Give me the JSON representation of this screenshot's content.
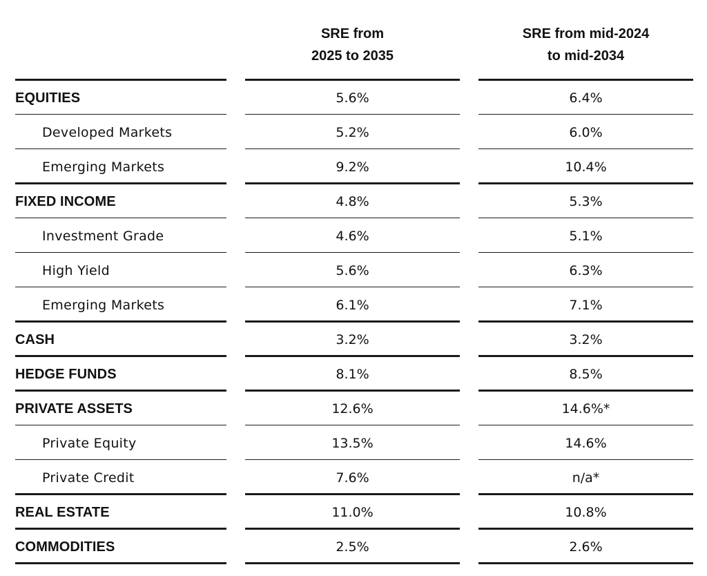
{
  "header": {
    "col1": {
      "line1": "SRE from",
      "line2": "2025 to 2035"
    },
    "col2": {
      "line1": "SRE from mid-2024",
      "line2": "to mid-2034"
    }
  },
  "rows": [
    {
      "label": "EQUITIES",
      "level": "main",
      "v1": "5.6%",
      "v2": "6.4%"
    },
    {
      "label": "Developed Markets",
      "level": "sub",
      "v1": "5.2%",
      "v2": "6.0%"
    },
    {
      "label": "Emerging Markets",
      "level": "sub",
      "v1": "9.2%",
      "v2": "10.4%"
    },
    {
      "label": "FIXED INCOME",
      "level": "main",
      "v1": "4.8%",
      "v2": "5.3%"
    },
    {
      "label": "Investment Grade",
      "level": "sub",
      "v1": "4.6%",
      "v2": "5.1%"
    },
    {
      "label": "High Yield",
      "level": "sub",
      "v1": "5.6%",
      "v2": "6.3%"
    },
    {
      "label": "Emerging Markets",
      "level": "sub",
      "v1": "6.1%",
      "v2": "7.1%"
    },
    {
      "label": "CASH",
      "level": "main",
      "v1": "3.2%",
      "v2": "3.2%"
    },
    {
      "label": "HEDGE FUNDS",
      "level": "main",
      "v1": "8.1%",
      "v2": "8.5%"
    },
    {
      "label": "PRIVATE ASSETS",
      "level": "main",
      "v1": "12.6%",
      "v2": "14.6%*"
    },
    {
      "label": "Private Equity",
      "level": "sub",
      "v1": "13.5%",
      "v2": "14.6%"
    },
    {
      "label": "Private Credit",
      "level": "sub",
      "v1": "7.6%",
      "v2": "n/a*"
    },
    {
      "label": "REAL ESTATE",
      "level": "main",
      "v1": "11.0%",
      "v2": "10.8%"
    },
    {
      "label": "COMMODITIES",
      "level": "main",
      "v1": "2.5%",
      "v2": "2.6%"
    }
  ]
}
